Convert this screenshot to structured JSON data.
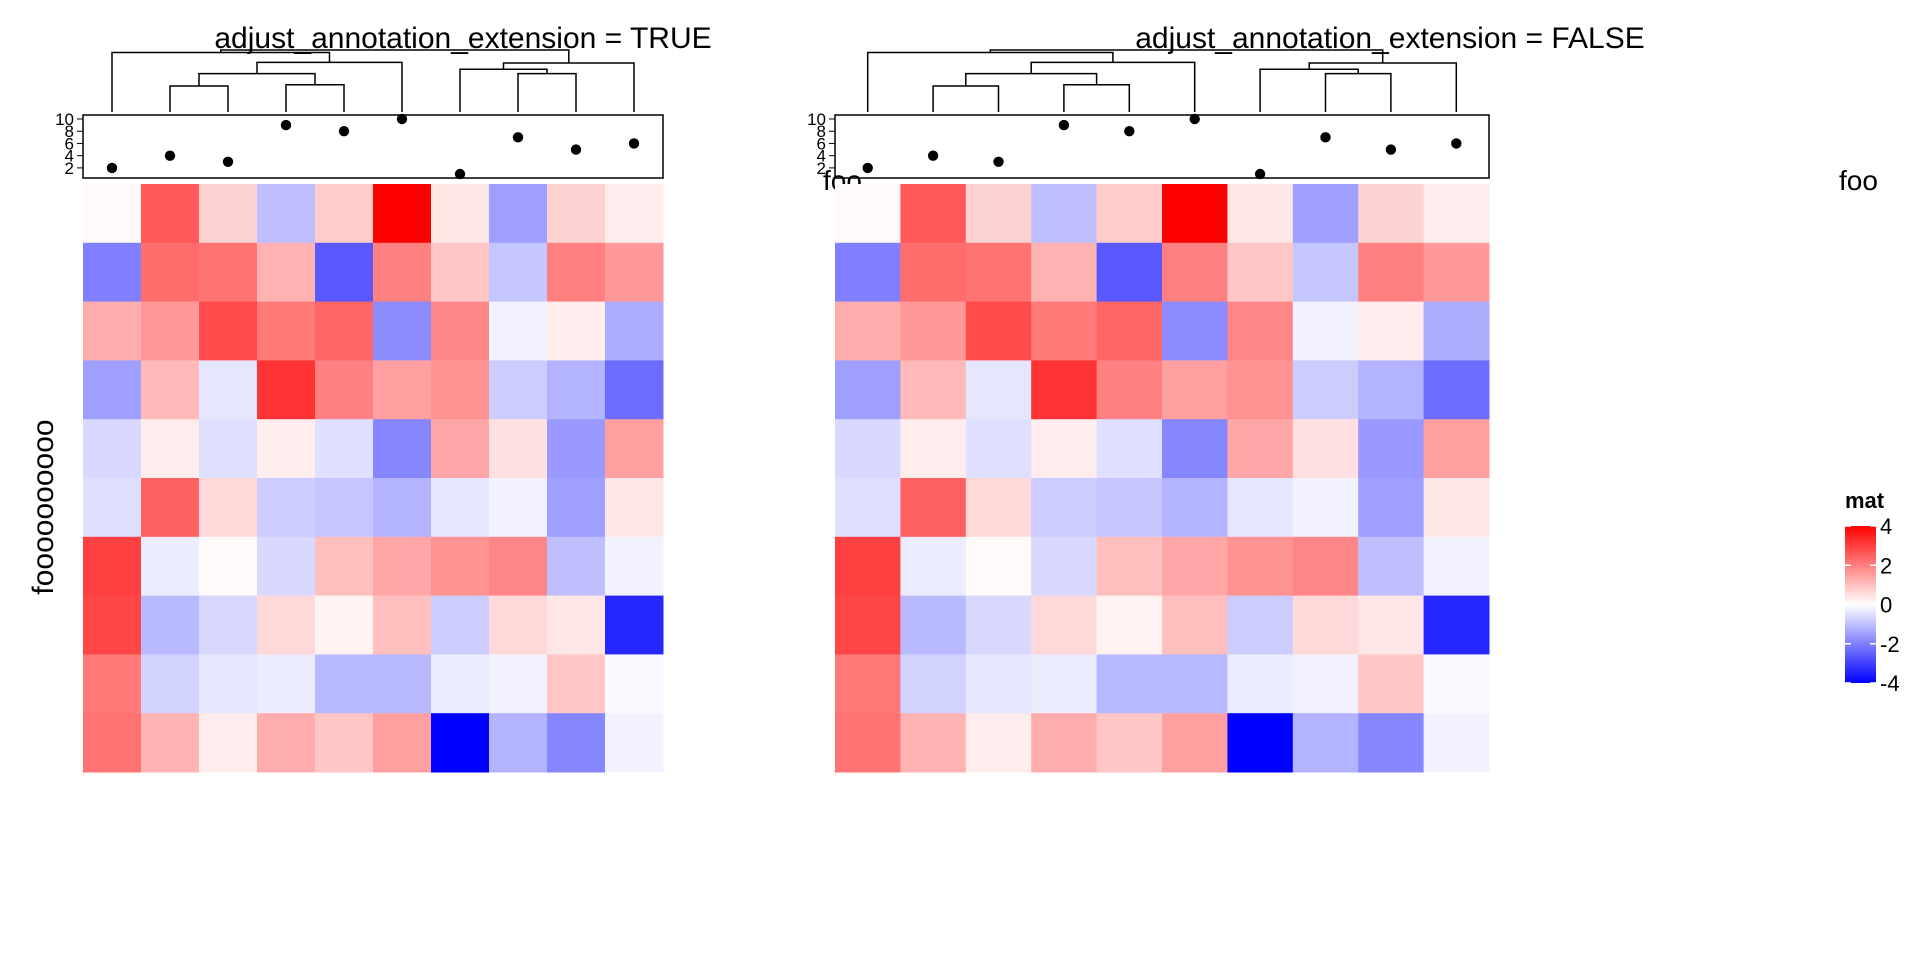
{
  "chart_data": [
    {
      "type": "heatmap",
      "title": "adjust_annotation_extension = TRUE",
      "row_title": "foooooooooo",
      "legend": {
        "title": "mat",
        "ticks": [
          4,
          2,
          0,
          -2,
          -4
        ],
        "range": [
          -4,
          4
        ],
        "colors": {
          "low": "#0000FF",
          "mid": "#FFFFFF",
          "high": "#FF0000"
        }
      },
      "annotation": {
        "name": "foo",
        "type": "points",
        "ylim": [
          1,
          10
        ],
        "ticks": [
          10,
          8,
          6,
          4,
          2
        ],
        "values": [
          2,
          4,
          3,
          9,
          8,
          10,
          1,
          7,
          5,
          6
        ]
      },
      "dendrogram": "column",
      "matrix": [
        [
          0.1,
          2.6,
          0.7,
          -1.0,
          0.8,
          4.0,
          0.4,
          -1.5,
          0.7,
          0.3
        ],
        [
          -2.0,
          2.3,
          2.2,
          1.2,
          -2.6,
          2.0,
          0.9,
          -0.9,
          2.0,
          1.6
        ],
        [
          1.3,
          1.6,
          2.8,
          2.1,
          2.4,
          -1.8,
          1.9,
          -0.2,
          0.3,
          -1.3
        ],
        [
          -1.5,
          1.1,
          -0.4,
          3.2,
          2.0,
          1.5,
          1.7,
          -0.8,
          -1.2,
          -2.3
        ],
        [
          -0.6,
          0.3,
          -0.5,
          0.3,
          -0.5,
          -1.9,
          1.4,
          0.5,
          -1.6,
          1.5
        ],
        [
          -0.5,
          2.5,
          0.6,
          -0.8,
          -0.9,
          -1.2,
          -0.4,
          -0.2,
          -1.5,
          0.4
        ],
        [
          3.0,
          -0.3,
          0.1,
          -0.6,
          1.0,
          1.4,
          1.7,
          1.9,
          -1.0,
          -0.2
        ],
        [
          2.9,
          -1.1,
          -0.6,
          0.6,
          0.2,
          1.0,
          -0.8,
          0.6,
          0.4,
          -3.4
        ],
        [
          2.1,
          -0.7,
          -0.4,
          -0.3,
          -1.1,
          -1.1,
          -0.3,
          -0.2,
          0.9,
          -0.1
        ],
        [
          2.2,
          1.2,
          0.3,
          1.3,
          0.9,
          1.5,
          -4.0,
          -1.2,
          -1.9,
          -0.2
        ]
      ]
    },
    {
      "type": "heatmap",
      "title": "adjust_annotation_extension = FALSE",
      "row_title": "foooooooooo",
      "legend": {
        "title": "mat",
        "ticks": [
          4,
          2,
          0,
          -2,
          -4
        ],
        "range": [
          -4,
          4
        ],
        "colors": {
          "low": "#0000FF",
          "mid": "#FFFFFF",
          "high": "#FF0000"
        }
      },
      "annotation": {
        "name": "foo",
        "type": "points",
        "ylim": [
          1,
          10
        ],
        "ticks": [
          10,
          8,
          6,
          4,
          2
        ],
        "values": [
          2,
          4,
          3,
          9,
          8,
          10,
          1,
          7,
          5,
          6
        ]
      },
      "dendrogram": "column",
      "matrix": [
        [
          0.1,
          2.6,
          0.7,
          -1.0,
          0.8,
          4.0,
          0.4,
          -1.5,
          0.7,
          0.3
        ],
        [
          -2.0,
          2.3,
          2.2,
          1.2,
          -2.6,
          2.0,
          0.9,
          -0.9,
          2.0,
          1.6
        ],
        [
          1.3,
          1.6,
          2.8,
          2.1,
          2.4,
          -1.8,
          1.9,
          -0.2,
          0.3,
          -1.3
        ],
        [
          -1.5,
          1.1,
          -0.4,
          3.2,
          2.0,
          1.5,
          1.7,
          -0.8,
          -1.2,
          -2.3
        ],
        [
          -0.6,
          0.3,
          -0.5,
          0.3,
          -0.5,
          -1.9,
          1.4,
          0.5,
          -1.6,
          1.5
        ],
        [
          -0.5,
          2.5,
          0.6,
          -0.8,
          -0.9,
          -1.2,
          -0.4,
          -0.2,
          -1.5,
          0.4
        ],
        [
          3.0,
          -0.3,
          0.1,
          -0.6,
          1.0,
          1.4,
          1.7,
          1.9,
          -1.0,
          -0.2
        ],
        [
          2.9,
          -1.1,
          -0.6,
          0.6,
          0.2,
          1.0,
          -0.8,
          0.6,
          0.4,
          -3.4
        ],
        [
          2.1,
          -0.7,
          -0.4,
          -0.3,
          -1.1,
          -1.1,
          -0.3,
          -0.2,
          0.9,
          -0.1
        ],
        [
          2.2,
          1.2,
          0.3,
          1.3,
          0.9,
          1.5,
          -4.0,
          -1.2,
          -1.9,
          -0.2
        ]
      ]
    }
  ]
}
